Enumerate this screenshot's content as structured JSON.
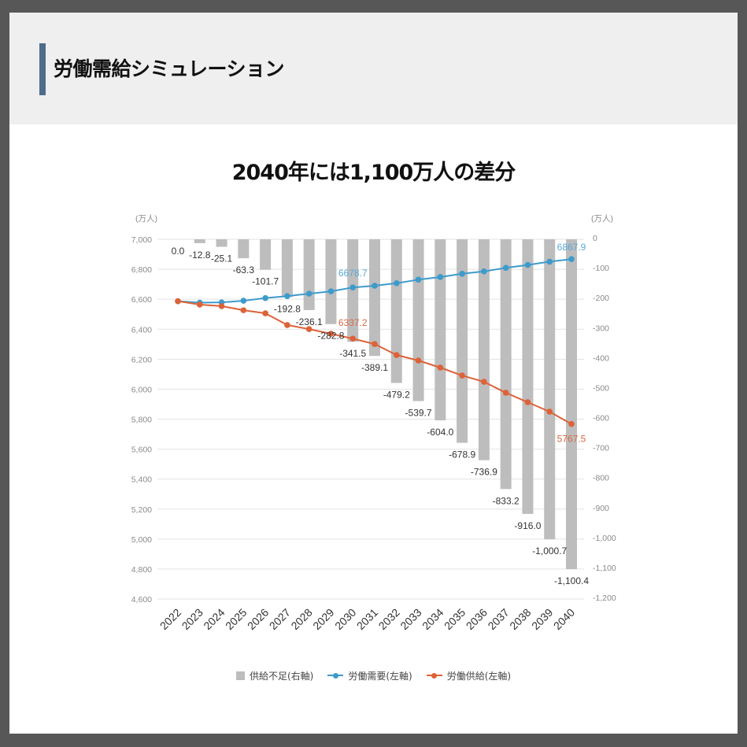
{
  "header": {
    "title": "労働需給シミュレーション",
    "accent_color": "#4e6c8b"
  },
  "chart_data": {
    "type": "bar",
    "title": "2040年には1,100万人の差分",
    "categories": [
      "2022",
      "2023",
      "2024",
      "2025",
      "2026",
      "2027",
      "2028",
      "2029",
      "2030",
      "2031",
      "2032",
      "2033",
      "2034",
      "2035",
      "2036",
      "2037",
      "2038",
      "2039",
      "2040"
    ],
    "y_left": {
      "label": "(万人)",
      "ylim": [
        4600,
        7000
      ],
      "ticks": [
        "7,000",
        "6,800",
        "6,600",
        "6,400",
        "6,200",
        "6,000",
        "5,800",
        "5,600",
        "5,400",
        "5,200",
        "5,000",
        "4,800",
        "4,600"
      ]
    },
    "y_right": {
      "label": "(万人)",
      "ylim": [
        -1200,
        0
      ],
      "ticks": [
        "0",
        "-100",
        "-200",
        "-300",
        "-400",
        "-500",
        "-600",
        "-700",
        "-800",
        "-900",
        "-1,000",
        "-1,100",
        "-1,200"
      ]
    },
    "grid": true,
    "legend": "bottom-center",
    "series": [
      {
        "name": "供給不足(右軸)",
        "type": "bar",
        "axis": "right",
        "color": "#bdbdbd",
        "values": [
          0.0,
          -12.8,
          -25.1,
          -63.3,
          -101.7,
          -192.8,
          -236.1,
          -282.8,
          -341.5,
          -389.1,
          -479.2,
          -539.7,
          -604.0,
          -678.9,
          -736.9,
          -833.2,
          -916.0,
          -1000.7,
          -1100.4
        ],
        "labels": [
          "0.0",
          "-12.8",
          "-25.1",
          "-63.3",
          "-101.7",
          "-192.8",
          "-236.1",
          "-282.8",
          "-341.5",
          "-389.1",
          "-479.2",
          "-539.7",
          "-604.0",
          "-678.9",
          "-736.9",
          "-833.2",
          "-916.0",
          "-1,000.7",
          "-1,100.4"
        ]
      },
      {
        "name": "労働需要(左軸)",
        "type": "line",
        "axis": "left",
        "color": "#3d9bcc",
        "label_color": "#5aa9d8",
        "values": [
          6587.0,
          6577.0,
          6579.1,
          6590.0,
          6608.0,
          6620.8,
          6637.1,
          6652.8,
          6678.7,
          6690.1,
          6707.2,
          6730.7,
          6748.0,
          6769.9,
          6785.9,
          6809.2,
          6829.0,
          6850.7,
          6867.9
        ],
        "data_labels": {
          "2030": "6678.7",
          "2040": "6867.9"
        }
      },
      {
        "name": "労働供給(左軸)",
        "type": "line",
        "axis": "left",
        "color": "#dd6238",
        "label_color": "#d86a45",
        "values": [
          6587.0,
          6564.2,
          6554.0,
          6526.7,
          6506.3,
          6428.0,
          6401.0,
          6370.0,
          6337.2,
          6301.0,
          6228.0,
          6191.0,
          6144.0,
          6091.0,
          6049.0,
          5976.0,
          5913.0,
          5850.0,
          5767.5
        ],
        "data_labels": {
          "2030": "6337.2",
          "2040": "5767.5"
        }
      }
    ]
  }
}
